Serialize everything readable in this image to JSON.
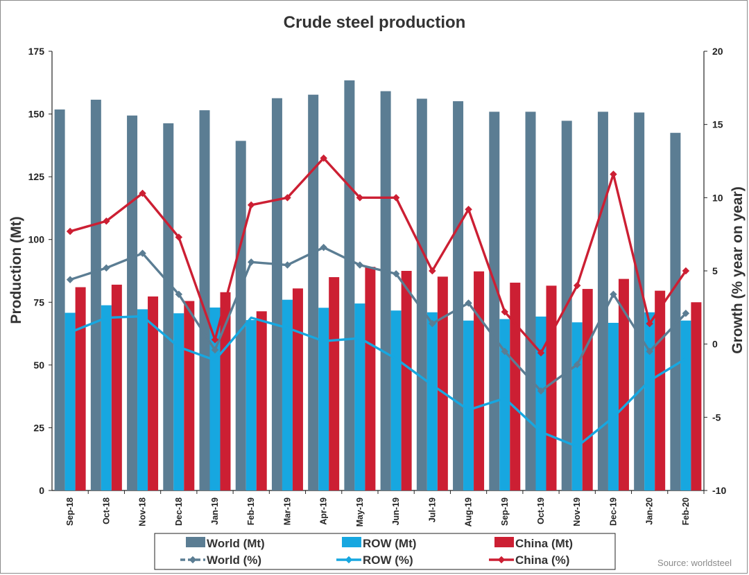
{
  "chart_data": {
    "type": "bar",
    "title": "Crude steel production",
    "ylabel": "Production (Mt)",
    "y2label": "Growth (% year on year)",
    "ylim": [
      0,
      175
    ],
    "yticks": [
      0,
      25,
      50,
      75,
      100,
      125,
      150,
      175
    ],
    "y2lim": [
      -10,
      20
    ],
    "y2ticks": [
      -10,
      -5,
      0,
      5,
      10,
      15,
      20
    ],
    "grid": false,
    "legend_position": "bottom",
    "source": "Source: worldsteel",
    "categories": [
      "Sep-18",
      "Oct-18",
      "Nov-18",
      "Dec-18",
      "Jan-19",
      "Feb-19",
      "Mar-19",
      "Apr-19",
      "May-19",
      "Jun-19",
      "Jul-19",
      "Aug-19",
      "Sep-19",
      "Oct-19",
      "Nov-19",
      "Dec-19",
      "Jan-20",
      "Feb-20"
    ],
    "bar_series": [
      {
        "name": "World (Mt)",
        "color": "#5b7d93",
        "values": [
          151.8,
          155.7,
          149.4,
          146.3,
          151.5,
          139.3,
          156.3,
          157.7,
          163.4,
          159.1,
          156.1,
          155.1,
          150.9,
          150.9,
          147.3,
          150.9,
          150.6,
          142.5
        ]
      },
      {
        "name": "ROW (Mt)",
        "color": "#17a7e0",
        "values": [
          70.8,
          73.8,
          72.2,
          70.6,
          72.9,
          67.9,
          76.0,
          72.8,
          74.5,
          71.7,
          71.0,
          67.7,
          68.3,
          69.3,
          67.0,
          66.8,
          71.0,
          67.7
        ]
      },
      {
        "name": "China (Mt)",
        "color": "#cc1f33",
        "values": [
          81.0,
          82.0,
          77.3,
          75.5,
          79.0,
          71.4,
          80.5,
          85.0,
          89.1,
          87.5,
          85.2,
          87.3,
          82.8,
          81.6,
          80.3,
          84.3,
          79.6,
          75.0
        ]
      }
    ],
    "line_series": [
      {
        "name": "World (%)",
        "color": "#5b7d93",
        "values": [
          4.4,
          5.2,
          6.2,
          3.4,
          -0.4,
          5.6,
          5.4,
          6.6,
          5.4,
          4.8,
          1.4,
          2.8,
          -0.5,
          -3.2,
          -1.4,
          3.4,
          -0.5,
          2.1
        ]
      },
      {
        "name": "ROW (%)",
        "color": "#17a7e0",
        "values": [
          0.8,
          1.8,
          1.9,
          -0.2,
          -1.1,
          1.8,
          1.1,
          0.2,
          0.4,
          -1.0,
          -2.8,
          -4.5,
          -3.7,
          -6.0,
          -7.0,
          -5.0,
          -2.5,
          -1.0
        ]
      },
      {
        "name": "China (%)",
        "color": "#cc1f33",
        "values": [
          7.7,
          8.4,
          10.3,
          7.3,
          0.3,
          9.5,
          10.0,
          12.7,
          10.0,
          10.0,
          5.0,
          9.2,
          2.2,
          -0.6,
          4.0,
          11.6,
          1.4,
          5.0
        ]
      }
    ]
  }
}
